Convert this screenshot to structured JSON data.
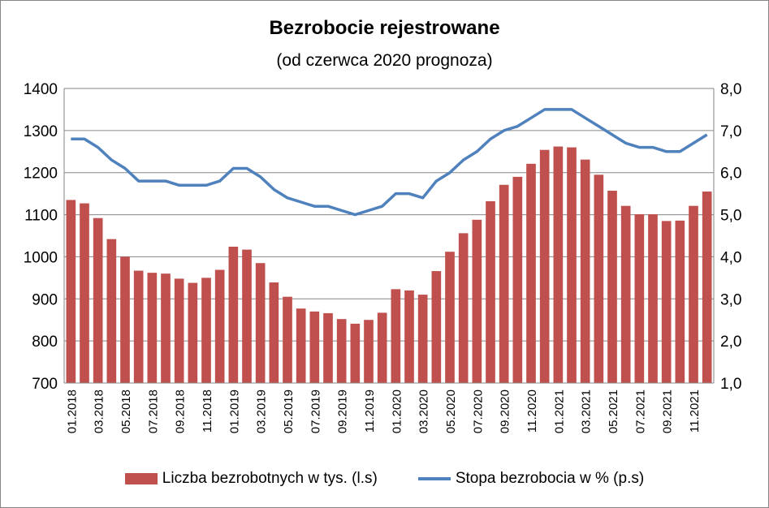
{
  "chart_data": {
    "type": "bar+line",
    "title": "Bezrobocie rejestrowane",
    "subtitle": "(od czerwca 2020 prognoza)",
    "categories": [
      "01.2018",
      "02.2018",
      "03.2018",
      "04.2018",
      "05.2018",
      "06.2018",
      "07.2018",
      "08.2018",
      "09.2018",
      "10.2018",
      "11.2018",
      "12.2018",
      "01.2019",
      "02.2019",
      "03.2019",
      "04.2019",
      "05.2019",
      "06.2019",
      "07.2019",
      "08.2019",
      "09.2019",
      "10.2019",
      "11.2019",
      "12.2019",
      "01.2020",
      "02.2020",
      "03.2020",
      "04.2020",
      "05.2020",
      "06.2020",
      "07.2020",
      "08.2020",
      "09.2020",
      "10.2020",
      "11.2020",
      "12.2020",
      "01.2021",
      "02.2021",
      "03.2021",
      "04.2021",
      "05.2021",
      "06.2021",
      "07.2021",
      "08.2021",
      "09.2021",
      "10.2021",
      "11.2021",
      "12.2021"
    ],
    "series": [
      {
        "name": "Liczba bezrobotnych w tys. (l.s)",
        "type": "bar",
        "axis": "left",
        "color": "#C0504D",
        "values": [
          1135,
          1127,
          1092,
          1042,
          1000,
          967,
          962,
          960,
          948,
          938,
          950,
          969,
          1024,
          1017,
          985,
          939,
          905,
          877,
          870,
          866,
          852,
          841,
          850,
          867,
          923,
          920,
          910,
          966,
          1012,
          1056,
          1088,
          1132,
          1171,
          1190,
          1221,
          1254,
          1262,
          1260,
          1231,
          1195,
          1157,
          1121,
          1101,
          1101,
          1085,
          1086,
          1121,
          1155
        ]
      },
      {
        "name": "Stopa bezrobocia w % (p.s)",
        "type": "line",
        "axis": "right",
        "color": "#4F81BD",
        "values": [
          6.8,
          6.8,
          6.6,
          6.3,
          6.1,
          5.8,
          5.8,
          5.8,
          5.7,
          5.7,
          5.7,
          5.8,
          6.1,
          6.1,
          5.9,
          5.6,
          5.4,
          5.3,
          5.2,
          5.2,
          5.1,
          5.0,
          5.1,
          5.2,
          5.5,
          5.5,
          5.4,
          5.8,
          6.0,
          6.3,
          6.5,
          6.8,
          7.0,
          7.1,
          7.3,
          7.5,
          7.5,
          7.5,
          7.3,
          7.1,
          6.9,
          6.7,
          6.6,
          6.6,
          6.5,
          6.5,
          6.7,
          6.9
        ]
      }
    ],
    "ylim_left": [
      700,
      1400
    ],
    "yticks_left": [
      "700",
      "800",
      "900",
      "1000",
      "1100",
      "1200",
      "1300",
      "1400"
    ],
    "ylim_right": [
      1,
      8
    ],
    "yticks_right": [
      "1,0",
      "2,0",
      "3,0",
      "4,0",
      "5,0",
      "6,0",
      "7,0",
      "8,0"
    ],
    "xtick_labels": [
      "01.2018",
      "03.2018",
      "05.2018",
      "07.2018",
      "09.2018",
      "11.2018",
      "01.2019",
      "03.2019",
      "05.2019",
      "07.2019",
      "09.2019",
      "11.2019",
      "01.2020",
      "03.2020",
      "05.2020",
      "07.2020",
      "09.2020",
      "11.2020",
      "01.2021",
      "03.2021",
      "05.2021",
      "07.2021",
      "09.2021",
      "11.2021"
    ],
    "grid": true,
    "legend": "bottom"
  }
}
